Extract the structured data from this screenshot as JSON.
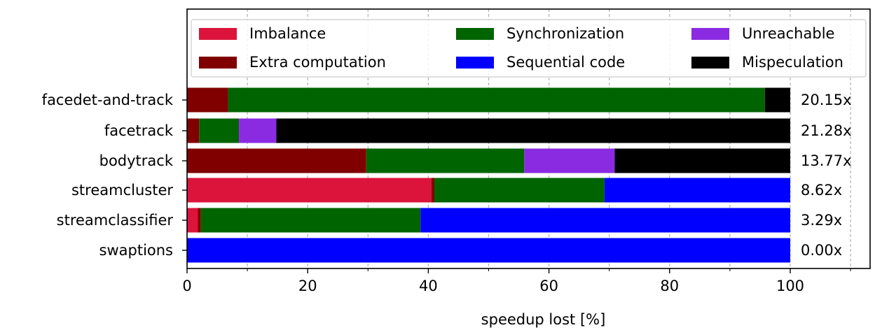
{
  "chart_data": {
    "type": "bar",
    "orientation": "horizontal",
    "stacked": true,
    "xlabel": "speedup lost [%]",
    "ylabel": "",
    "xlim": [
      0,
      100
    ],
    "xticks": [
      0,
      20,
      40,
      60,
      80,
      100
    ],
    "grid": "vertical dashed",
    "legend_position": "top",
    "categories": [
      "facedet-and-track",
      "facetrack",
      "bodytrack",
      "streamcluster",
      "streamclassifier",
      "swaptions"
    ],
    "speedups": [
      "20.15x",
      "21.28x",
      "13.77x",
      "8.62x",
      "3.29x",
      "0.00x"
    ],
    "series": [
      {
        "name": "Imbalance",
        "color": "#dc143c",
        "values": [
          0,
          0,
          0,
          40.5,
          1.8,
          0
        ]
      },
      {
        "name": "Extra computation",
        "color": "#800000",
        "values": [
          6.8,
          2.0,
          29.7,
          0.5,
          0.5,
          0
        ]
      },
      {
        "name": "Synchronization",
        "color": "#006400",
        "values": [
          89.0,
          6.6,
          26.2,
          28.2,
          36.4,
          0
        ]
      },
      {
        "name": "Sequential code",
        "color": "#0000ff",
        "values": [
          0,
          0,
          0,
          30.8,
          61.3,
          100
        ]
      },
      {
        "name": "Unreachable",
        "color": "#8a2be2",
        "values": [
          0,
          6.2,
          15.0,
          0,
          0,
          0
        ]
      },
      {
        "name": "Mispeculation",
        "color": "#000000",
        "values": [
          4.2,
          85.2,
          29.1,
          0,
          0,
          0
        ]
      }
    ],
    "legend_order": [
      "Imbalance",
      "Synchronization",
      "Unreachable",
      "Extra computation",
      "Sequential code",
      "Mispeculation"
    ]
  }
}
